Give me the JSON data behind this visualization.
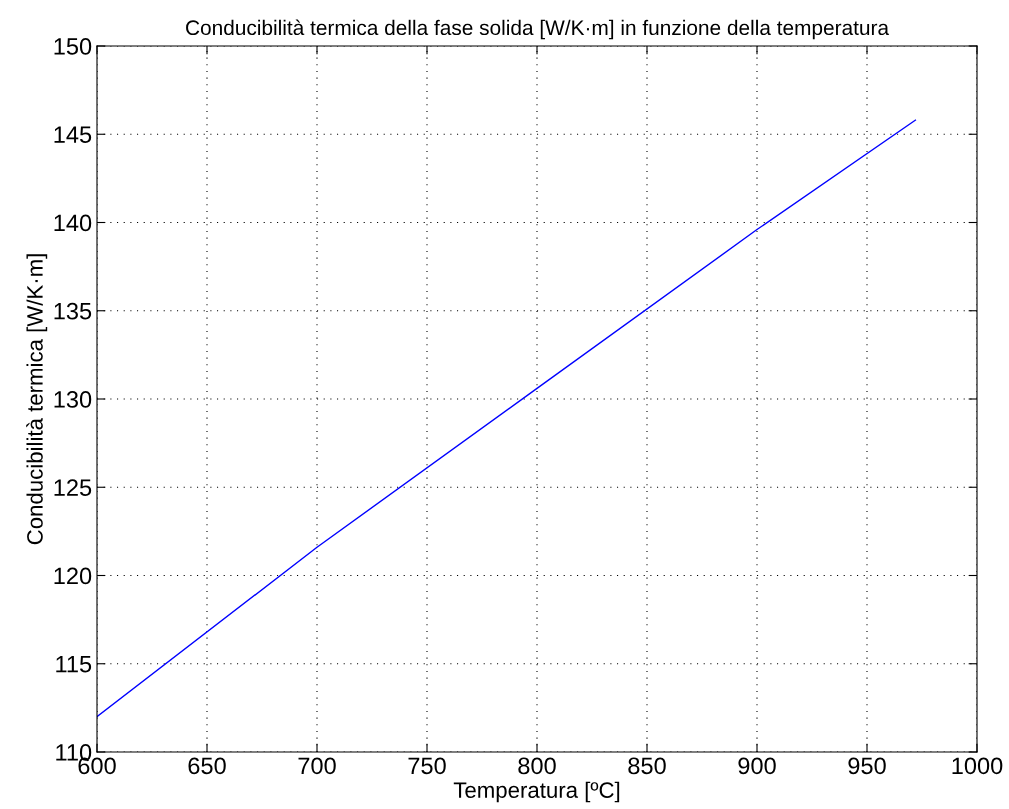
{
  "chart_data": {
    "type": "line",
    "title": "Conducibilità termica della fase solida [W/K·m] in funzione della temperatura",
    "xlabel": "Temperatura [ºC]",
    "ylabel": "Conducibilità termica [W/K·m]",
    "x": [
      600,
      700,
      800,
      900,
      972
    ],
    "series": [
      {
        "color": "#0000ff",
        "values": [
          112,
          121.6,
          130.6,
          139.6,
          145.8
        ]
      }
    ],
    "xlim": [
      600,
      1000
    ],
    "xticks": [
      600,
      650,
      700,
      750,
      800,
      850,
      900,
      950,
      1000
    ],
    "ylim": [
      110,
      150
    ],
    "yticks": [
      110,
      115,
      120,
      125,
      130,
      135,
      140,
      145,
      150
    ],
    "grid": true,
    "line_style": "solid",
    "marker": "none"
  }
}
